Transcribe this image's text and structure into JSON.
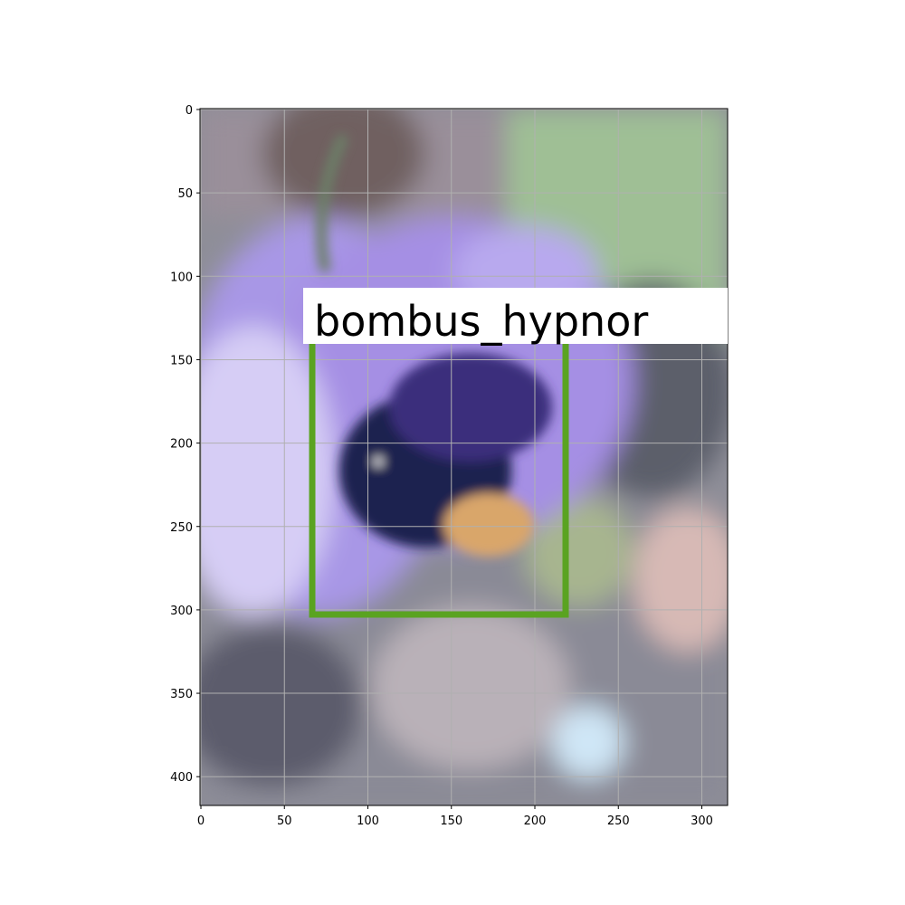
{
  "image": {
    "description_of_pixels": "blurred photo of a bumblebee on a lavender scabious flower",
    "colors": {
      "flower": "#a897e6",
      "flower_light": "#d6cdf5",
      "bee_body": "#1c2050",
      "bee_tail": "#d9a66a",
      "background_green": "#8aa87a",
      "background_dark": "#4a4a5a"
    }
  },
  "axes": {
    "x_ticks": [
      "0",
      "50",
      "100",
      "150",
      "200",
      "250",
      "300"
    ],
    "y_ticks": [
      "0",
      "50",
      "100",
      "150",
      "200",
      "250",
      "300",
      "350",
      "400"
    ],
    "grid": true
  },
  "detection": {
    "label": "bombus_hypnor",
    "box_color": "#5aa321",
    "label_bg": "#ffffff"
  }
}
